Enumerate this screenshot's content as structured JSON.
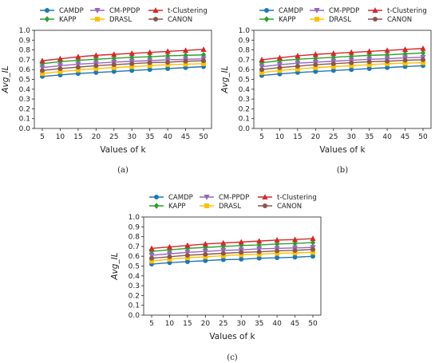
{
  "chart_data": [
    {
      "type": "line",
      "caption": "(a)",
      "xlabel": "Values of k",
      "ylabel": "Avg_IL",
      "x": [
        5,
        10,
        15,
        20,
        25,
        30,
        35,
        40,
        45,
        50
      ],
      "xticks": [
        "5",
        "10",
        "15",
        "20",
        "25",
        "30",
        "35",
        "40",
        "45",
        "50"
      ],
      "ylim": [
        0.0,
        1.0
      ],
      "yticks": [
        "0.0",
        "0.1",
        "0.2",
        "0.3",
        "0.4",
        "0.5",
        "0.6",
        "0.7",
        "0.8",
        "0.9",
        "1.0"
      ],
      "grid": false,
      "legend": "top, 3 columns",
      "series": [
        {
          "name": "CAMDP",
          "color": "#1f77b4",
          "marker": "circle",
          "values": [
            0.53,
            0.545,
            0.56,
            0.57,
            0.58,
            0.59,
            0.6,
            0.61,
            0.62,
            0.63
          ]
        },
        {
          "name": "KAPP",
          "color": "#2ca02c",
          "marker": "diamond",
          "values": [
            0.66,
            0.68,
            0.695,
            0.705,
            0.715,
            0.725,
            0.73,
            0.74,
            0.745,
            0.75
          ]
        },
        {
          "name": "CM-PPDP",
          "color": "#9467bd",
          "marker": "triangle-down",
          "values": [
            0.62,
            0.64,
            0.655,
            0.665,
            0.675,
            0.685,
            0.69,
            0.7,
            0.705,
            0.71
          ]
        },
        {
          "name": "DRASL",
          "color": "#ffbf00",
          "marker": "square",
          "values": [
            0.56,
            0.58,
            0.595,
            0.61,
            0.62,
            0.63,
            0.64,
            0.65,
            0.655,
            0.66
          ]
        },
        {
          "name": "t-Clustering",
          "color": "#d62728",
          "marker": "triangle-up",
          "values": [
            0.69,
            0.71,
            0.73,
            0.745,
            0.755,
            0.765,
            0.775,
            0.785,
            0.795,
            0.805
          ]
        },
        {
          "name": "CANON",
          "color": "#8c564b",
          "marker": "circle",
          "values": [
            0.59,
            0.61,
            0.625,
            0.64,
            0.65,
            0.66,
            0.67,
            0.675,
            0.685,
            0.69
          ]
        }
      ]
    },
    {
      "type": "line",
      "caption": "(b)",
      "xlabel": "Values of k",
      "ylabel": "Avg_IL",
      "x": [
        5,
        10,
        15,
        20,
        25,
        30,
        35,
        40,
        45,
        50
      ],
      "xticks": [
        "5",
        "10",
        "15",
        "20",
        "25",
        "30",
        "35",
        "40",
        "45",
        "50"
      ],
      "ylim": [
        0.0,
        1.0
      ],
      "yticks": [
        "0.0",
        "0.1",
        "0.2",
        "0.3",
        "0.4",
        "0.5",
        "0.6",
        "0.7",
        "0.8",
        "0.9",
        "1.0"
      ],
      "grid": false,
      "legend": "top, 3 columns",
      "series": [
        {
          "name": "CAMDP",
          "color": "#1f77b4",
          "marker": "circle",
          "values": [
            0.54,
            0.555,
            0.57,
            0.58,
            0.59,
            0.6,
            0.61,
            0.62,
            0.63,
            0.64
          ]
        },
        {
          "name": "KAPP",
          "color": "#2ca02c",
          "marker": "diamond",
          "values": [
            0.67,
            0.69,
            0.705,
            0.715,
            0.725,
            0.735,
            0.745,
            0.75,
            0.76,
            0.77
          ]
        },
        {
          "name": "CM-PPDP",
          "color": "#9467bd",
          "marker": "triangle-down",
          "values": [
            0.63,
            0.65,
            0.665,
            0.675,
            0.685,
            0.695,
            0.705,
            0.71,
            0.72,
            0.725
          ]
        },
        {
          "name": "DRASL",
          "color": "#ffbf00",
          "marker": "square",
          "values": [
            0.57,
            0.59,
            0.605,
            0.62,
            0.63,
            0.64,
            0.65,
            0.66,
            0.665,
            0.67
          ]
        },
        {
          "name": "t-Clustering",
          "color": "#d62728",
          "marker": "triangle-up",
          "values": [
            0.7,
            0.72,
            0.74,
            0.755,
            0.765,
            0.775,
            0.785,
            0.795,
            0.805,
            0.815
          ]
        },
        {
          "name": "CANON",
          "color": "#8c564b",
          "marker": "circle",
          "values": [
            0.6,
            0.62,
            0.635,
            0.65,
            0.66,
            0.67,
            0.68,
            0.685,
            0.695,
            0.7
          ]
        }
      ]
    },
    {
      "type": "line",
      "caption": "(c)",
      "xlabel": "Values of k",
      "ylabel": "Avg_IL",
      "x": [
        5,
        10,
        15,
        20,
        25,
        30,
        35,
        40,
        45,
        50
      ],
      "xticks": [
        "5",
        "10",
        "15",
        "20",
        "25",
        "30",
        "35",
        "40",
        "45",
        "50"
      ],
      "ylim": [
        0.0,
        1.0
      ],
      "yticks": [
        "0.0",
        "0.1",
        "0.2",
        "0.3",
        "0.4",
        "0.5",
        "0.6",
        "0.7",
        "0.8",
        "0.9",
        "1.0"
      ],
      "grid": false,
      "legend": "top, 3 columns",
      "series": [
        {
          "name": "CAMDP",
          "color": "#1f77b4",
          "marker": "circle",
          "values": [
            0.52,
            0.535,
            0.545,
            0.555,
            0.565,
            0.57,
            0.58,
            0.585,
            0.59,
            0.6
          ]
        },
        {
          "name": "KAPP",
          "color": "#2ca02c",
          "marker": "diamond",
          "values": [
            0.65,
            0.665,
            0.68,
            0.69,
            0.7,
            0.71,
            0.715,
            0.725,
            0.73,
            0.74
          ]
        },
        {
          "name": "CM-PPDP",
          "color": "#9467bd",
          "marker": "triangle-down",
          "values": [
            0.61,
            0.625,
            0.64,
            0.65,
            0.66,
            0.665,
            0.675,
            0.68,
            0.685,
            0.69
          ]
        },
        {
          "name": "DRASL",
          "color": "#ffbf00",
          "marker": "square",
          "values": [
            0.55,
            0.57,
            0.585,
            0.595,
            0.605,
            0.615,
            0.62,
            0.63,
            0.635,
            0.64
          ]
        },
        {
          "name": "t-Clustering",
          "color": "#d62728",
          "marker": "triangle-up",
          "values": [
            0.68,
            0.695,
            0.71,
            0.725,
            0.735,
            0.745,
            0.755,
            0.765,
            0.77,
            0.78
          ]
        },
        {
          "name": "CANON",
          "color": "#8c564b",
          "marker": "circle",
          "values": [
            0.58,
            0.595,
            0.61,
            0.62,
            0.63,
            0.64,
            0.645,
            0.655,
            0.66,
            0.67
          ]
        }
      ]
    }
  ]
}
